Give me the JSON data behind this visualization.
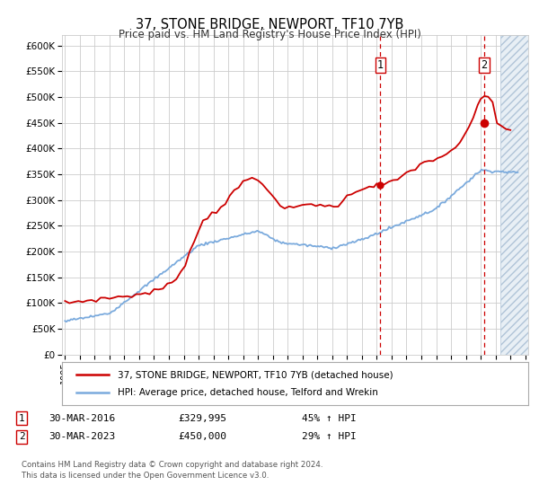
{
  "title": "37, STONE BRIDGE, NEWPORT, TF10 7YB",
  "subtitle": "Price paid vs. HM Land Registry's House Price Index (HPI)",
  "legend_line1": "37, STONE BRIDGE, NEWPORT, TF10 7YB (detached house)",
  "legend_line2": "HPI: Average price, detached house, Telford and Wrekin",
  "marker1_label": "1",
  "marker2_label": "2",
  "marker1_date": "30-MAR-2016",
  "marker1_price": "£329,995",
  "marker1_pct": "45% ↑ HPI",
  "marker2_date": "30-MAR-2023",
  "marker2_price": "£450,000",
  "marker2_pct": "29% ↑ HPI",
  "footnote1": "Contains HM Land Registry data © Crown copyright and database right 2024.",
  "footnote2": "This data is licensed under the Open Government Licence v3.0.",
  "ylim": [
    0,
    620000
  ],
  "yticks": [
    0,
    50000,
    100000,
    150000,
    200000,
    250000,
    300000,
    350000,
    400000,
    450000,
    500000,
    550000,
    600000
  ],
  "ytick_labels": [
    "£0",
    "£50K",
    "£100K",
    "£150K",
    "£200K",
    "£250K",
    "£300K",
    "£350K",
    "£400K",
    "£450K",
    "£500K",
    "£550K",
    "£600K"
  ],
  "xlim_start": 1994.8,
  "xlim_end": 2026.2,
  "vline1_x": 2016.24,
  "vline2_x": 2023.24,
  "hatch_start": 2024.3,
  "red_color": "#cc0000",
  "blue_color": "#7aaadd",
  "vline_color": "#cc0000",
  "hatch_color": "#c8d8e8",
  "bg_color": "#ffffff",
  "grid_color": "#cccccc",
  "marker_box_color": "#cc0000",
  "sale1_y": 329995,
  "sale2_y": 450000
}
